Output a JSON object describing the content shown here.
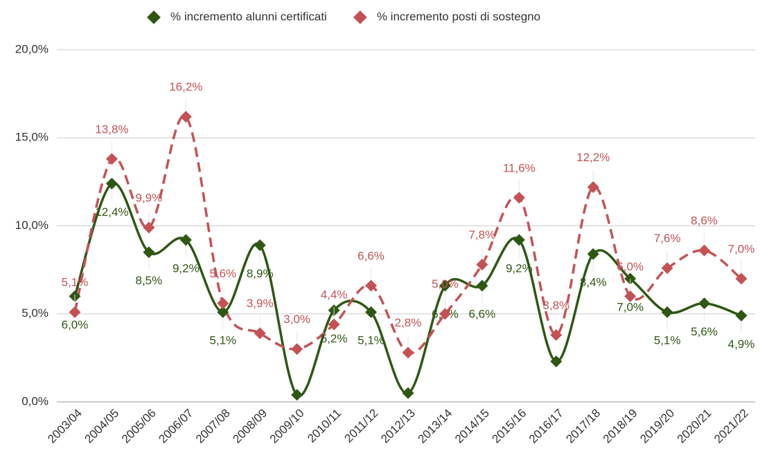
{
  "chart_data": {
    "type": "line",
    "categories": [
      "2003/04",
      "2004/05",
      "2005/06",
      "2006/07",
      "2007/08",
      "2008/09",
      "2009/10",
      "2010/11",
      "2011/12",
      "2012/13",
      "2013/14",
      "2014/15",
      "2015/16",
      "2016/17",
      "2017/18",
      "2018/19",
      "2019/20",
      "2020/21",
      "2021/22"
    ],
    "series": [
      {
        "name": "% incremento alunni certificati",
        "color": "#2e5714",
        "values": [
          6.0,
          12.4,
          8.5,
          9.2,
          5.1,
          8.9,
          0.4,
          5.2,
          5.1,
          0.5,
          6.6,
          6.6,
          9.2,
          2.3,
          8.4,
          7.0,
          5.1,
          5.6,
          4.9
        ],
        "value_labels": [
          "6,0%",
          "12,4%",
          "8,5%",
          "9,2%",
          "5,1%",
          "8,9%",
          null,
          "5,2%",
          "5,1%",
          null,
          "6,6%",
          "6,6%",
          "9,2%",
          null,
          "8,4%",
          "7,0%",
          "5,1%",
          "5,6%",
          "4,9%"
        ]
      },
      {
        "name": "% incremento posti di sostegno",
        "color": "#c45255",
        "values": [
          5.1,
          13.8,
          9.9,
          16.2,
          5.6,
          3.9,
          3.0,
          4.4,
          6.6,
          2.8,
          5.0,
          7.8,
          11.6,
          3.8,
          12.2,
          6.0,
          7.6,
          8.6,
          7.0
        ],
        "value_labels": [
          "5,1%",
          "13,8%",
          "9,9%",
          "16,2%",
          "5,6%",
          "3,9%",
          "3,0%",
          "4,4%",
          "6,6%",
          "2,8%",
          "5,0%",
          "7,8%",
          "11,6%",
          "3,8%",
          "12,2%",
          "6,0%",
          "7,6%",
          "8,6%",
          "7,0%"
        ]
      }
    ],
    "ylim": [
      0,
      20
    ],
    "yticks": [
      {
        "value": 0,
        "label": "0,0%"
      },
      {
        "value": 5,
        "label": "5,0%"
      },
      {
        "value": 10,
        "label": "10,0%"
      },
      {
        "value": 15,
        "label": "15,0%"
      },
      {
        "value": 20,
        "label": "20,0%"
      }
    ],
    "grid": true,
    "legend": "top"
  }
}
